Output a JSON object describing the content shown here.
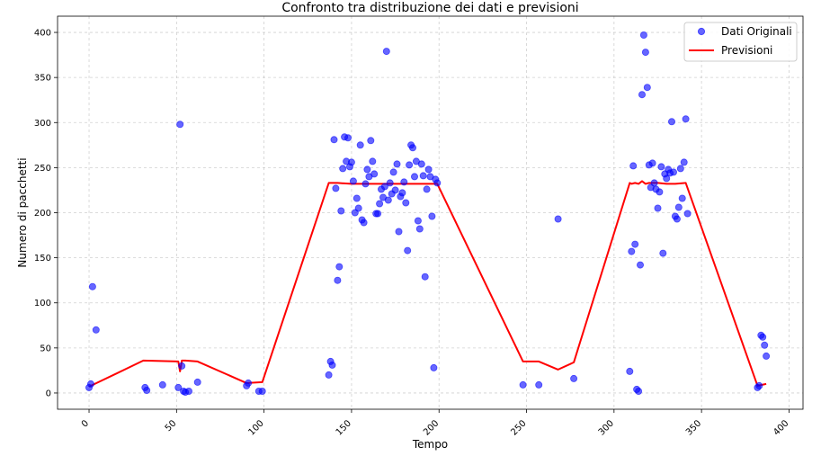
{
  "chart_data": {
    "type": "scatter",
    "title": "Confronto tra distribuzione dei dati e previsioni",
    "xlabel": "Tempo",
    "ylabel": "Numero di pacchetti",
    "xlim": [
      -18,
      408
    ],
    "ylim": [
      -18,
      418
    ],
    "x_ticks": [
      0,
      50,
      100,
      150,
      200,
      250,
      300,
      350,
      400
    ],
    "y_ticks": [
      0,
      50,
      100,
      150,
      200,
      250,
      300,
      350,
      400
    ],
    "x_tick_labels": [
      "0",
      "50",
      "100",
      "150",
      "200",
      "250",
      "300",
      "350",
      "400"
    ],
    "y_tick_labels": [
      "0",
      "50",
      "100",
      "150",
      "200",
      "250",
      "300",
      "350",
      "400"
    ],
    "x_tick_rotation": 45,
    "grid": true,
    "legend_position": "top-right",
    "series": [
      {
        "name": "Dati Originali",
        "kind": "scatter",
        "color": "#0000ff",
        "x": [
          0,
          1,
          2,
          4,
          32,
          33,
          42,
          51,
          52,
          53,
          54,
          55,
          57,
          62,
          90,
          91,
          97,
          99,
          137,
          138,
          139,
          140,
          141,
          142,
          143,
          144,
          145,
          146,
          147,
          148,
          149,
          150,
          151,
          152,
          153,
          154,
          155,
          156,
          157,
          158,
          159,
          160,
          161,
          162,
          163,
          164,
          165,
          166,
          167,
          168,
          169,
          170,
          171,
          172,
          173,
          174,
          175,
          176,
          177,
          178,
          179,
          180,
          181,
          182,
          183,
          184,
          185,
          186,
          187,
          188,
          189,
          190,
          191,
          192,
          193,
          194,
          195,
          196,
          197,
          198,
          199,
          248,
          257,
          268,
          277,
          309,
          310,
          311,
          312,
          313,
          314,
          315,
          316,
          317,
          318,
          319,
          320,
          321,
          322,
          323,
          324,
          325,
          326,
          327,
          328,
          329,
          330,
          331,
          332,
          333,
          334,
          335,
          336,
          337,
          338,
          339,
          340,
          341,
          342,
          382,
          383,
          384,
          385,
          386,
          387
        ],
        "y": [
          6,
          10,
          118,
          70,
          6,
          3,
          9,
          6,
          298,
          30,
          2,
          1,
          2,
          12,
          8,
          11,
          2,
          2,
          20,
          35,
          31,
          281,
          227,
          125,
          140,
          202,
          249,
          284,
          257,
          283,
          251,
          256,
          235,
          200,
          216,
          205,
          275,
          192,
          189,
          232,
          248,
          240,
          280,
          257,
          243,
          199,
          199,
          210,
          226,
          217,
          229,
          379,
          214,
          233,
          221,
          245,
          225,
          254,
          179,
          218,
          222,
          234,
          211,
          158,
          253,
          275,
          272,
          240,
          257,
          191,
          182,
          254,
          241,
          129,
          226,
          248,
          240,
          196,
          28,
          237,
          233,
          9,
          9,
          193,
          16,
          24,
          157,
          252,
          165,
          4,
          2,
          142,
          331,
          397,
          378,
          339,
          253,
          228,
          255,
          233,
          226,
          205,
          223,
          251,
          155,
          243,
          238,
          248,
          244,
          301,
          245,
          196,
          193,
          206,
          249,
          216,
          256,
          304,
          199,
          6,
          8,
          64,
          62,
          53,
          41
        ]
      },
      {
        "name": "Previsioni",
        "kind": "line",
        "color": "#ff0000",
        "x": [
          0,
          31,
          51,
          52,
          53,
          55,
          62,
          90,
          99,
          137,
          142,
          150,
          199,
          248,
          257,
          268,
          277,
          309,
          310,
          312,
          314,
          316,
          318,
          320,
          322,
          325,
          330,
          335,
          341,
          382,
          387
        ],
        "y": [
          7,
          36,
          35,
          24,
          36,
          36,
          35,
          11,
          12,
          233,
          233,
          232,
          232,
          35,
          35,
          26,
          34,
          233,
          232,
          233,
          232,
          235,
          232,
          233,
          233,
          233,
          232,
          232,
          233,
          8,
          10
        ]
      }
    ]
  }
}
